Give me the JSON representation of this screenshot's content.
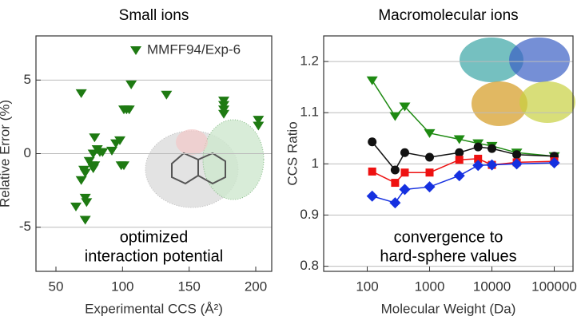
{
  "chart_data": [
    {
      "type": "scatter",
      "title": "Small ions",
      "x_label": "Experimental CCS (Å²)",
      "y_label": "Relative Error (%)",
      "xlim": [
        35,
        212
      ],
      "xticks": [
        50,
        100,
        150,
        200
      ],
      "ylim": [
        -8,
        8
      ],
      "yticks": [
        -5,
        0,
        5
      ],
      "grid": true,
      "legend": "upper right",
      "series": [
        {
          "name": "MMFF94/Exp-6",
          "color": "#1e7a12",
          "marker": "triangle-down",
          "x": [
            69,
            106.5,
            101,
            103,
            105,
            133,
            176,
            176,
            176,
            176,
            202,
            202,
            79,
            81,
            83,
            85,
            92,
            95,
            98,
            99,
            101,
            78,
            75,
            77,
            78,
            79,
            71,
            72,
            69,
            72,
            65,
            73,
            72
          ],
          "values": [
            4.1,
            4.7,
            3.0,
            3.0,
            3.0,
            4.0,
            3.6,
            3.3,
            3.0,
            2.7,
            2.3,
            1.9,
            1.1,
            0.3,
            0.1,
            0.1,
            0.2,
            0.7,
            0.9,
            -0.8,
            -0.8,
            0,
            -0.5,
            -0.8,
            -1.0,
            -0.8,
            -1.1,
            -1.3,
            -1.8,
            -3.0,
            -3.6,
            -3.3,
            -4.5
          ]
        }
      ],
      "annotation": [
        "optimized",
        "interaction potential"
      ]
    },
    {
      "type": "line",
      "title": "Macromolecular ions",
      "x_label": "Molecular Weight (Da)",
      "y_label": "CCS Ratio",
      "xscale": "log",
      "xlim": [
        20,
        200000
      ],
      "xticks": [
        100,
        1000,
        10000,
        100000
      ],
      "ylim": [
        0.79,
        1.25
      ],
      "yticks": [
        0.8,
        0.9,
        1.0,
        1.1,
        1.2
      ],
      "grid": true,
      "x": [
        120,
        280,
        400,
        1000,
        3000,
        6000,
        10000,
        25000,
        100000
      ],
      "series": [
        {
          "color": "#1e8a12",
          "marker": "triangle-down",
          "values": [
            1.163,
            1.093,
            1.112,
            1.06,
            1.048,
            1.04,
            1.035,
            1.022,
            1.015
          ]
        },
        {
          "color": "#111111",
          "marker": "circle",
          "values": [
            1.043,
            0.988,
            1.022,
            1.013,
            1.022,
            1.033,
            1.03,
            1.018,
            1.015
          ]
        },
        {
          "color": "#ee1111",
          "marker": "square",
          "values": [
            0.985,
            0.963,
            0.983,
            0.983,
            1.008,
            1.01,
            0.998,
            1.003,
            1.005
          ]
        },
        {
          "color": "#1530e0",
          "marker": "diamond",
          "values": [
            0.937,
            0.924,
            0.95,
            0.955,
            0.977,
            0.997,
            0.998,
            1.0,
            1.002
          ]
        }
      ],
      "annotation": [
        "convergence to",
        "hard-sphere values"
      ]
    }
  ]
}
